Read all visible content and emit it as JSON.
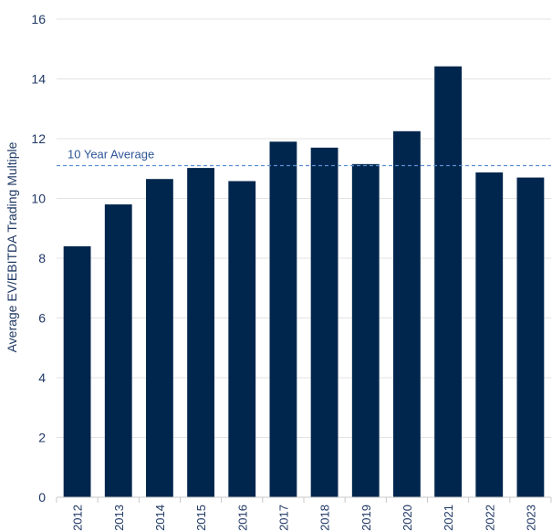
{
  "chart_data": {
    "type": "bar",
    "categories": [
      "2012",
      "2013",
      "2014",
      "2015",
      "2016",
      "2017",
      "2018",
      "2019",
      "2020",
      "2021",
      "2022",
      "2023"
    ],
    "values": [
      8.4,
      9.8,
      10.65,
      11.02,
      10.58,
      11.9,
      11.7,
      11.15,
      12.25,
      14.42,
      10.87,
      10.7
    ],
    "ylabel": "Average EV/EBITDA Trading Multiple",
    "xlabel": "",
    "ylim": [
      0,
      16
    ],
    "yticks": [
      0,
      2,
      4,
      6,
      8,
      10,
      12,
      14,
      16
    ],
    "grid": true,
    "bar_color": "#00264d",
    "reference_line": {
      "label": "10 Year Average",
      "value": 11.1,
      "color": "#5b8fd1",
      "style": "dashed"
    }
  }
}
